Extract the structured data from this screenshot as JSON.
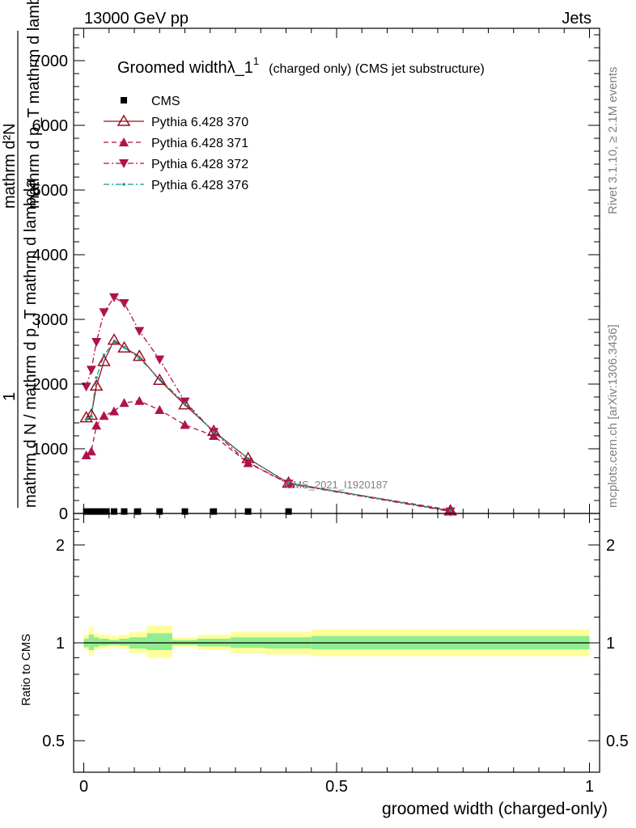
{
  "header": {
    "energy_label": "13000 GeV pp",
    "category_label": "Jets"
  },
  "side_labels": {
    "rivet": "Rivet 3.1.10, ≥ 2.1M events",
    "mcplots": "mcplots.cern.ch [arXiv:1306.3436]"
  },
  "watermark": "CMS_2021_I1920187",
  "title": {
    "main": "Groomed widthλ_1",
    "sup": "1",
    "suffix": "(charged only) (CMS jet substructure)"
  },
  "ylabel": {
    "numerator": "mathrm d²N",
    "line2": "mathrm d p_T mathrm d lambda",
    "one": "1",
    "denominator": "mathrm d N / mathrm d p_T mathrm d lambda"
  },
  "ratio_ylabel": "Ratio to CMS",
  "xlabel": "groomed width (charged-only)",
  "colors": {
    "cms": "#000000",
    "py370": "#9a0f1f",
    "py371": "#b0124e",
    "py372": "#b0124e",
    "py376": "#159b8a",
    "band_yellow": "#ffff99",
    "band_green": "#90ee90"
  },
  "chart_data": {
    "type": "scatter",
    "x_range": [
      -0.02,
      1.02
    ],
    "main_ylim": [
      0,
      7500
    ],
    "main_yticks": [
      {
        "v": 1000,
        "label": "1000"
      },
      {
        "v": 2000,
        "label": "2000"
      },
      {
        "v": 3000,
        "label": "3000"
      },
      {
        "v": 4000,
        "label": "4000"
      },
      {
        "v": 5000,
        "label": "5000"
      },
      {
        "v": 6000,
        "label": "6000"
      },
      {
        "v": 7000,
        "label": "7000"
      }
    ],
    "x_ticks": [
      {
        "v": 0,
        "label": "0"
      },
      {
        "v": 0.5,
        "label": "0.5"
      },
      {
        "v": 1,
        "label": "1"
      }
    ],
    "x_bin_edges": [
      0,
      0.01,
      0.02,
      0.03,
      0.04,
      0.05,
      0.07,
      0.09,
      0.125,
      0.175,
      0.225,
      0.29,
      0.36,
      0.45,
      1.0
    ],
    "series": [
      {
        "name": "CMS",
        "style": "data",
        "x": [
          0.005,
          0.015,
          0.025,
          0.035,
          0.045,
          0.06,
          0.08,
          0.107,
          0.15,
          0.2,
          0.257,
          0.325,
          0.405
        ],
        "y": [
          30,
          30,
          30,
          30,
          30,
          30,
          30,
          30,
          30,
          30,
          30,
          30,
          30
        ]
      },
      {
        "name": "Pythia 6.428 370",
        "style": "open-triangle-solid",
        "x": [
          0.005,
          0.015,
          0.025,
          0.04,
          0.06,
          0.08,
          0.11,
          0.15,
          0.2,
          0.257,
          0.325,
          0.405,
          0.725
        ],
        "y": [
          1480,
          1520,
          1970,
          2350,
          2680,
          2560,
          2430,
          2060,
          1680,
          1270,
          850,
          470,
          40
        ]
      },
      {
        "name": "Pythia 6.428 371",
        "style": "filled-triangle-dashed",
        "x": [
          0.005,
          0.015,
          0.025,
          0.04,
          0.06,
          0.08,
          0.11,
          0.15,
          0.2,
          0.257,
          0.325,
          0.405,
          0.725
        ],
        "y": [
          900,
          960,
          1360,
          1510,
          1580,
          1710,
          1740,
          1600,
          1370,
          1200,
          780,
          460,
          55
        ]
      },
      {
        "name": "Pythia 6.428 372",
        "style": "filled-down-triangle-dashdot",
        "x": [
          0.005,
          0.015,
          0.025,
          0.04,
          0.06,
          0.08,
          0.11,
          0.15,
          0.2,
          0.257,
          0.325,
          0.405,
          0.725
        ],
        "y": [
          1960,
          2220,
          2650,
          3110,
          3340,
          3250,
          2820,
          2380,
          1730,
          1260,
          790,
          460,
          30
        ]
      },
      {
        "name": "Pythia 6.428 376",
        "style": "dot-dashdot",
        "x": [
          0.005,
          0.015,
          0.025,
          0.04,
          0.06,
          0.08,
          0.11,
          0.15,
          0.2,
          0.257,
          0.325,
          0.405,
          0.725
        ],
        "y": [
          1450,
          1500,
          2100,
          2450,
          2650,
          2570,
          2400,
          2080,
          1700,
          1260,
          850,
          470,
          40
        ]
      }
    ],
    "ratio": {
      "ylim_log": [
        0.4,
        2.5
      ],
      "yticks": [
        {
          "v": 0.5,
          "label": "0.5"
        },
        {
          "v": 1,
          "label": "1"
        },
        {
          "v": 2,
          "label": "2"
        }
      ],
      "yellow_band": [
        {
          "lo": 0.95,
          "hi": 1.06
        },
        {
          "lo": 0.91,
          "hi": 1.12
        },
        {
          "lo": 0.95,
          "hi": 1.07
        },
        {
          "lo": 0.96,
          "hi": 1.06
        },
        {
          "lo": 0.96,
          "hi": 1.06
        },
        {
          "lo": 0.97,
          "hi": 1.05
        },
        {
          "lo": 0.96,
          "hi": 1.06
        },
        {
          "lo": 0.93,
          "hi": 1.08
        },
        {
          "lo": 0.9,
          "hi": 1.13
        },
        {
          "lo": 0.97,
          "hi": 1.04
        },
        {
          "lo": 0.95,
          "hi": 1.06
        },
        {
          "lo": 0.93,
          "hi": 1.08
        },
        {
          "lo": 0.92,
          "hi": 1.08
        },
        {
          "lo": 0.91,
          "hi": 1.1
        }
      ],
      "green_band": [
        {
          "lo": 0.97,
          "hi": 1.03
        },
        {
          "lo": 0.95,
          "hi": 1.06
        },
        {
          "lo": 0.97,
          "hi": 1.04
        },
        {
          "lo": 0.98,
          "hi": 1.03
        },
        {
          "lo": 0.98,
          "hi": 1.03
        },
        {
          "lo": 0.985,
          "hi": 1.02
        },
        {
          "lo": 0.98,
          "hi": 1.03
        },
        {
          "lo": 0.96,
          "hi": 1.04
        },
        {
          "lo": 0.95,
          "hi": 1.07
        },
        {
          "lo": 0.985,
          "hi": 1.02
        },
        {
          "lo": 0.975,
          "hi": 1.03
        },
        {
          "lo": 0.965,
          "hi": 1.04
        },
        {
          "lo": 0.96,
          "hi": 1.04
        },
        {
          "lo": 0.955,
          "hi": 1.05
        }
      ]
    }
  }
}
